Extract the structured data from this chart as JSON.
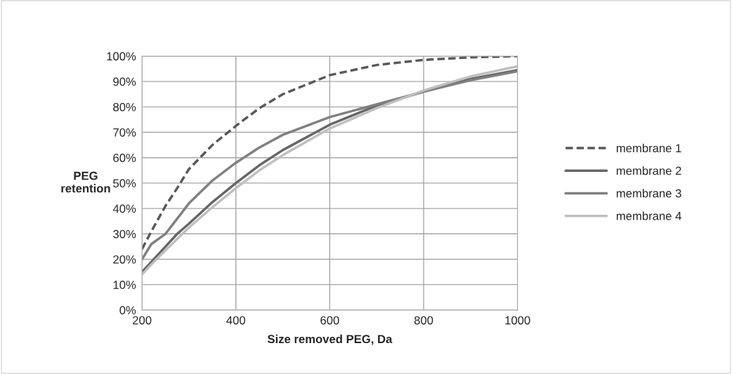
{
  "chart_data": {
    "type": "line",
    "xlabel": "Size removed PEG, Da",
    "ylabel": "PEG\nretention",
    "x": [
      200,
      220,
      250,
      275,
      300,
      350,
      400,
      450,
      500,
      600,
      700,
      800,
      900,
      1000
    ],
    "series": [
      {
        "name": "membrane 1",
        "color": "#595959",
        "line_style": "dashed",
        "values": [
          24,
          31,
          41,
          48,
          55.5,
          65,
          72.5,
          79.5,
          85,
          92.5,
          96.5,
          98.5,
          99.5,
          100
        ]
      },
      {
        "name": "membrane 2",
        "color": "#666666",
        "line_style": "solid",
        "values": [
          15,
          19,
          25,
          30,
          34,
          42.5,
          50,
          57,
          63,
          73,
          80.5,
          86,
          91,
          94.5
        ]
      },
      {
        "name": "membrane 3",
        "color": "#808080",
        "line_style": "solid",
        "values": [
          20,
          26,
          30,
          36,
          42,
          51,
          58,
          64,
          69,
          76,
          81,
          86,
          90.5,
          94
        ]
      },
      {
        "name": "membrane 4",
        "color": "#bfbfbf",
        "line_style": "solid",
        "values": [
          14,
          18,
          23.5,
          28,
          32.5,
          40.5,
          48,
          55,
          61,
          71.5,
          79.5,
          86.5,
          92,
          96
        ]
      }
    ],
    "xlim": [
      200,
      1000
    ],
    "xticks": [
      200,
      400,
      600,
      800,
      1000
    ],
    "ylim": [
      0,
      100
    ],
    "yticks": [
      {
        "value": 0,
        "label": "0%"
      },
      {
        "value": 10,
        "label": "10%"
      },
      {
        "value": 20,
        "label": "20%"
      },
      {
        "value": 30,
        "label": "30%"
      },
      {
        "value": 40,
        "label": "40%"
      },
      {
        "value": 50,
        "label": "50%"
      },
      {
        "value": 60,
        "label": "60%"
      },
      {
        "value": 70,
        "label": "70%"
      },
      {
        "value": 80,
        "label": "80%"
      },
      {
        "value": 90,
        "label": "90%"
      },
      {
        "value": 100,
        "label": "100%"
      }
    ],
    "grid": true,
    "legend": "right",
    "marker": "none"
  }
}
